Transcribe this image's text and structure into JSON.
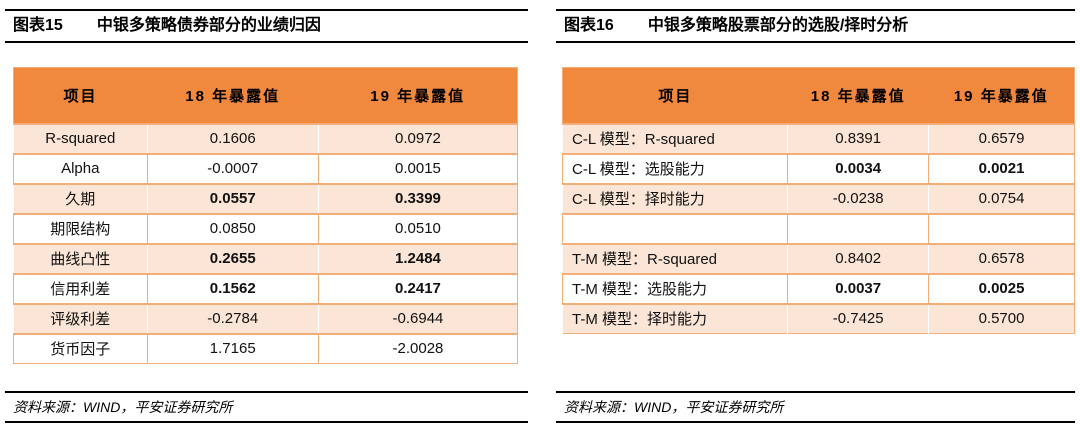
{
  "colors": {
    "header_bg": "#F0883D",
    "row_shade_bg": "#FBE5D6",
    "row_plain_bg": "#FFFFFF",
    "table_border": "#F2AE79",
    "rule_black": "#000000",
    "text": "#111111"
  },
  "panels": [
    {
      "title_label": "图表15",
      "title_text": "中银多策略债券部分的业绩归因",
      "source": "资料来源：WIND，平安证券研究所",
      "table": {
        "headers": [
          "项目",
          "18 年暴露值",
          "19 年暴露值"
        ],
        "rows": [
          {
            "cells": [
              "R-squared",
              "0.1606",
              "0.0972"
            ],
            "bold_values": false
          },
          {
            "cells": [
              "Alpha",
              "-0.0007",
              "0.0015"
            ],
            "bold_values": false
          },
          {
            "cells": [
              "久期",
              "0.0557",
              "0.3399"
            ],
            "bold_values": true
          },
          {
            "cells": [
              "期限结构",
              "0.0850",
              "0.0510"
            ],
            "bold_values": false
          },
          {
            "cells": [
              "曲线凸性",
              "0.2655",
              "1.2484"
            ],
            "bold_values": true
          },
          {
            "cells": [
              "信用利差",
              "0.1562",
              "0.2417"
            ],
            "bold_values": true
          },
          {
            "cells": [
              "评级利差",
              "-0.2784",
              "-0.6944"
            ],
            "bold_values": false
          },
          {
            "cells": [
              "货币因子",
              "1.7165",
              "-2.0028"
            ],
            "bold_values": false
          }
        ]
      }
    },
    {
      "title_label": "图表16",
      "title_text": "中银多策略股票部分的选股/择时分析",
      "source": "资料来源：WIND，平安证券研究所",
      "table": {
        "headers": [
          "项目",
          "18 年暴露值",
          "19 年暴露值"
        ],
        "rows": [
          {
            "cells": [
              "C-L 模型：R-squared",
              "0.8391",
              "0.6579"
            ],
            "bold_values": false
          },
          {
            "cells": [
              "C-L 模型：选股能力",
              "0.0034",
              "0.0021"
            ],
            "bold_values": true
          },
          {
            "cells": [
              "C-L 模型：择时能力",
              "-0.0238",
              "0.0754"
            ],
            "bold_values": false
          },
          {
            "cells": [
              "",
              "",
              ""
            ],
            "bold_values": false
          },
          {
            "cells": [
              "T-M 模型：R-squared",
              "0.8402",
              "0.6578"
            ],
            "bold_values": false
          },
          {
            "cells": [
              "T-M 模型：选股能力",
              "0.0037",
              "0.0025"
            ],
            "bold_values": true
          },
          {
            "cells": [
              "T-M 模型：择时能力",
              "-0.7425",
              "0.5700"
            ],
            "bold_values": false
          }
        ]
      }
    }
  ]
}
